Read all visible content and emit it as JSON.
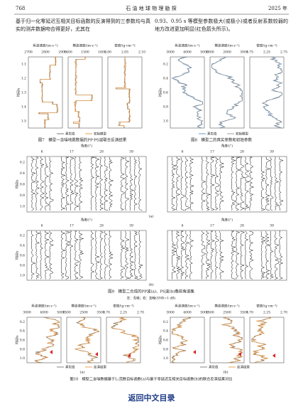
{
  "header": {
    "page": "768",
    "journal": "石 油 地 球 物 理 勘 探",
    "year": "2025 年"
  },
  "text": {
    "left": "基于归一化零延迟互相关目标函数的反演得到的三参数均与真实的测井数据吻合得更好，尤其在",
    "right": "0.93、0.95 s 等模型参数极大(或极小)或者反射系数较弱的地方改进更加明显(红色箭头所示)。"
  },
  "fig7": {
    "caption": "图7　模型一含噪地震数据的PP-PS波联合反演结果",
    "ylabel": "时间/s",
    "yticks": [
      "1.1",
      "1.2",
      "1.3",
      "1.4",
      "1.5"
    ],
    "legend": [
      "真实值",
      "初始模型"
    ],
    "panels": [
      {
        "xlabel": "纵波速度/(m·s⁻¹)",
        "xticks": [
          "2700",
          "2800",
          "2900"
        ]
      },
      {
        "xlabel": "横波速度/(m·s⁻¹)",
        "xticks": [
          "1400",
          "1500",
          "1600"
        ]
      },
      {
        "xlabel": "密度/(g·cm⁻³)",
        "xticks": [
          "2.00",
          "2.05",
          "2.10"
        ]
      }
    ]
  },
  "fig8": {
    "caption": "图8　模型二的真实参数和初始参数",
    "ylabel": "时间/s",
    "yticks": [
      "0.2",
      "0.4",
      "0.6",
      "0.8",
      "1.0"
    ],
    "legend": [
      "真实值",
      "初始模型"
    ],
    "panels": [
      {
        "xlabel": "纵波速度/(m·s⁻¹)",
        "xticks": [
          "3000",
          "4000",
          "5000"
        ]
      },
      {
        "xlabel": "横波速度/(m·s⁻¹)",
        "xticks": [
          "1000",
          "2000",
          "3000"
        ]
      },
      {
        "xlabel": "密度/(g·cm⁻³)",
        "xticks": [
          "1.75",
          "2.25",
          "2.75"
        ]
      }
    ]
  },
  "fig9": {
    "caption": "图9　模型二合成的PP波(a)、PS波(b)叠前角道集",
    "note": "左：无噪；右：加噪(SNR=1 dB)",
    "xlabel": "角度/(°)",
    "xticks": [
      "6",
      "17",
      "28",
      "39"
    ],
    "ylabel": "时间/s",
    "yticks": [
      "0.2",
      "0.4",
      "0.6",
      "0.8",
      "1.0"
    ],
    "sublabels": [
      "(a)",
      "(b)"
    ]
  },
  "fig10": {
    "caption": "图10　模型二含噪数据基于L₂范数目标函数(a)与基于零延迟互相关目标函数(b)的联合反演结果对比",
    "ylabel": "时间/s",
    "yticks": [
      "0.2",
      "0.4",
      "0.6",
      "0.8",
      "1.0"
    ],
    "legend": [
      "真实值",
      "反演结果"
    ],
    "sublabels": [
      "(a)",
      "(b)"
    ],
    "panels": [
      {
        "xlabel": "纵波速度/(m·s⁻¹)",
        "xticks": [
          "3000",
          "4000",
          "5000"
        ]
      },
      {
        "xlabel": "横波速度/(m·s⁻¹)",
        "xticks": [
          "1500",
          "2500",
          "3500"
        ]
      },
      {
        "xlabel": "密度/(g·cm⁻³)",
        "xticks": [
          "1.70",
          "2.25",
          "2.70"
        ]
      }
    ]
  },
  "footer": {
    "link": "返回中文目录"
  }
}
